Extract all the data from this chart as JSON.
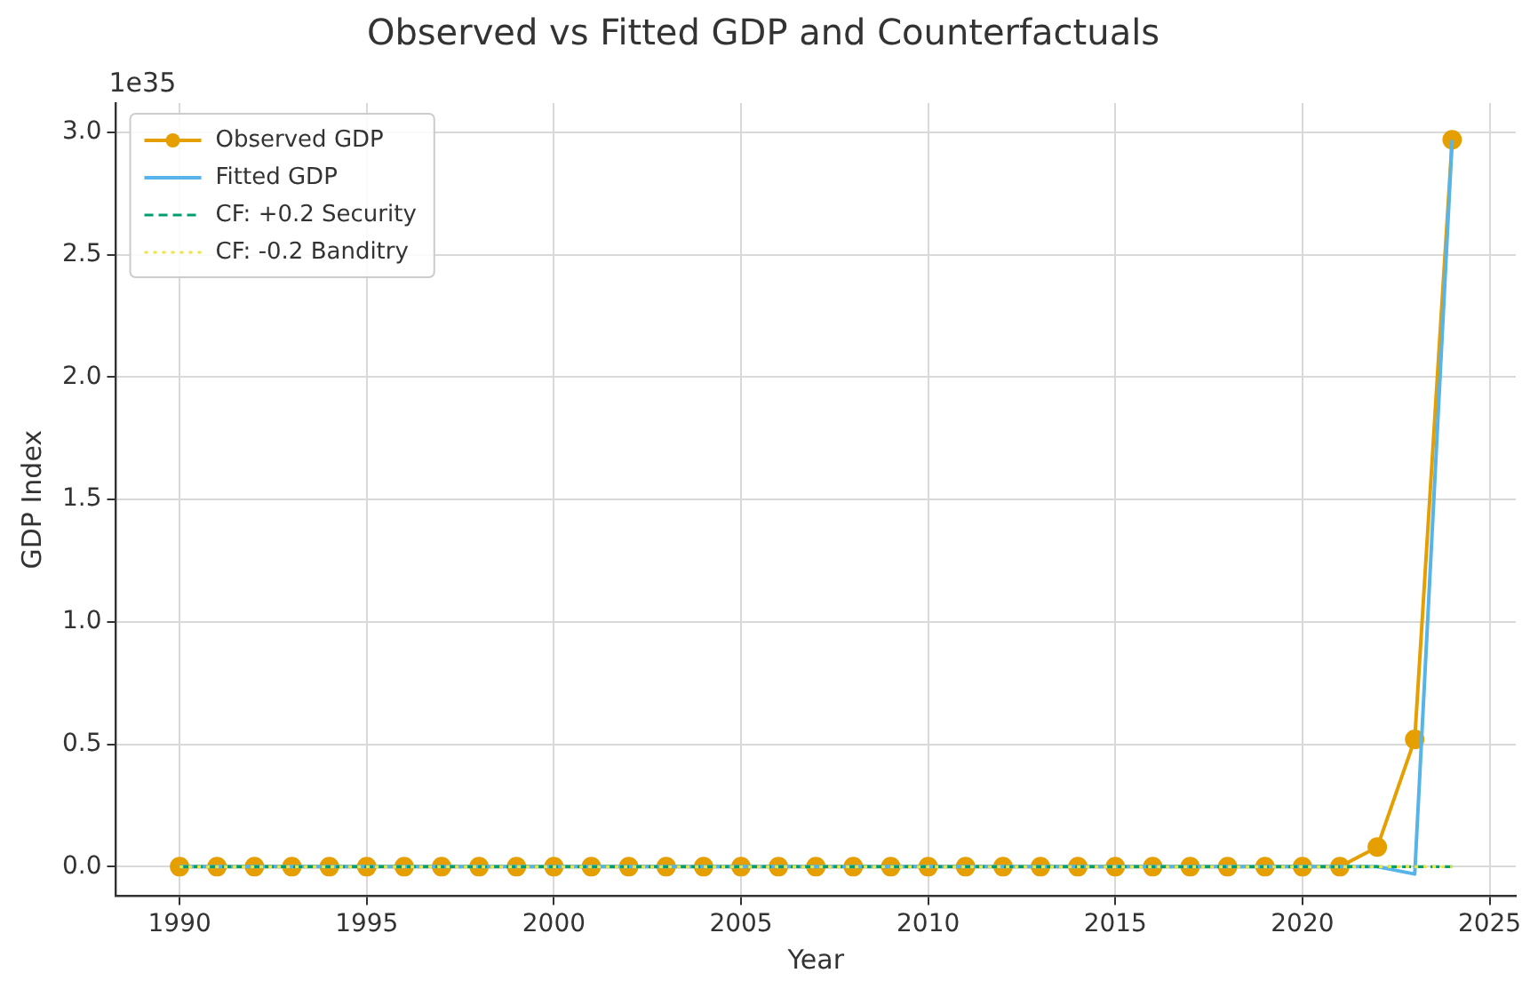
{
  "chart_data": {
    "type": "line",
    "title": "Observed vs Fitted GDP and Counterfactuals",
    "xlabel": "Year",
    "ylabel": "GDP Index",
    "annotations": [
      "1e35"
    ],
    "x": [
      1990,
      1991,
      1992,
      1993,
      1994,
      1995,
      1996,
      1997,
      1998,
      1999,
      2000,
      2001,
      2002,
      2003,
      2004,
      2005,
      2006,
      2007,
      2008,
      2009,
      2010,
      2011,
      2012,
      2013,
      2014,
      2015,
      2016,
      2017,
      2018,
      2019,
      2020,
      2021,
      2022,
      2023,
      2024
    ],
    "series": [
      {
        "name": "Observed GDP",
        "color": "#e69f00",
        "marker": "circle",
        "line_style": "solid",
        "values": [
          0,
          0,
          0,
          0,
          0,
          0,
          0,
          0,
          0,
          0,
          0,
          0,
          0,
          0,
          0,
          0,
          0,
          0,
          0,
          0,
          0,
          0,
          0,
          0,
          0,
          0,
          0,
          0,
          0,
          0,
          0,
          0,
          0.08,
          0.52,
          2.97
        ]
      },
      {
        "name": "Fitted GDP",
        "color": "#56b4e9",
        "marker": "none",
        "line_style": "solid",
        "values": [
          0,
          0,
          0,
          0,
          0,
          0,
          0,
          0,
          0,
          0,
          0,
          0,
          0,
          0,
          0,
          0,
          0,
          0,
          0,
          0,
          0,
          0,
          0,
          0,
          0,
          0,
          0,
          0,
          0,
          0,
          0,
          0,
          0,
          -0.03,
          2.97
        ]
      },
      {
        "name": "CF: +0.2 Security",
        "color": "#009e73",
        "marker": "none",
        "line_style": "dashed",
        "values": [
          0,
          0,
          0,
          0,
          0,
          0,
          0,
          0,
          0,
          0,
          0,
          0,
          0,
          0,
          0,
          0,
          0,
          0,
          0,
          0,
          0,
          0,
          0,
          0,
          0,
          0,
          0,
          0,
          0,
          0,
          0,
          0,
          0,
          0,
          0
        ]
      },
      {
        "name": "CF: -0.2 Banditry",
        "color": "#f0e442",
        "marker": "none",
        "line_style": "dotted",
        "values": [
          0,
          0,
          0,
          0,
          0,
          0,
          0,
          0,
          0,
          0,
          0,
          0,
          0,
          0,
          0,
          0,
          0,
          0,
          0,
          0,
          0,
          0,
          0,
          0,
          0,
          0,
          0,
          0,
          0,
          0,
          0,
          0,
          0,
          0,
          0
        ]
      }
    ],
    "xlim": [
      1988.3,
      2025.7
    ],
    "xticks": [
      1990,
      1995,
      2000,
      2005,
      2010,
      2015,
      2020,
      2025
    ],
    "ylim": [
      -0.12,
      3.12
    ],
    "yticks": [
      {
        "value": 0,
        "label": "0.0"
      },
      {
        "value": 0.5,
        "label": "0.5"
      },
      {
        "value": 1,
        "label": "1.0"
      },
      {
        "value": 1.5,
        "label": "1.5"
      },
      {
        "value": 2,
        "label": "2.0"
      },
      {
        "value": 2.5,
        "label": "2.5"
      },
      {
        "value": 3,
        "label": "3.0"
      }
    ],
    "grid": true,
    "legend": "top left"
  }
}
